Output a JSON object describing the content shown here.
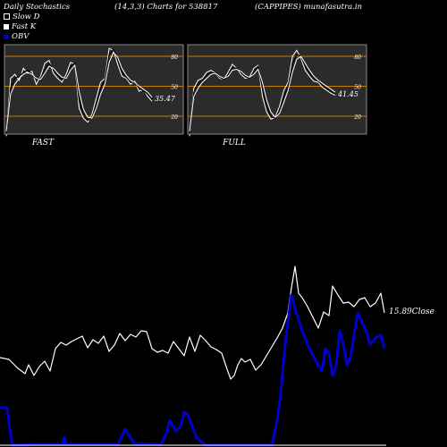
{
  "header": {
    "title": "Daily Stochastics",
    "params": "(14,3,3) Charts for 538817",
    "symbol": "(CAPPIPES) munafasutra.in"
  },
  "legend": [
    {
      "label": "Slow  D",
      "color": "#000000"
    },
    {
      "label": "Fast K",
      "color": "#ffffff"
    },
    {
      "label": "OBV",
      "color": "#0000cc"
    }
  ],
  "colors": {
    "background": "#000000",
    "panel": "#2b2b2b",
    "level_line": "#cc7a00",
    "stoch_line": "#ffffff",
    "obv_line": "#0000cc",
    "price_line": "#ffffff"
  },
  "chart_data": [
    {
      "type": "line",
      "panel": "FAST",
      "ylim": [
        0,
        100
      ],
      "levels": [
        20,
        50,
        80
      ],
      "level_labels": [
        "20",
        "50",
        "80"
      ],
      "last_value_label": "35.47",
      "series": [
        {
          "values": [
            0,
            58,
            62,
            56,
            68,
            63,
            65,
            52,
            60,
            73,
            76,
            63,
            58,
            54,
            62,
            74,
            72,
            28,
            18,
            14,
            22,
            38,
            54,
            58,
            88,
            86,
            72,
            60,
            58,
            52,
            55,
            45,
            47,
            40,
            35
          ]
        },
        {
          "values": [
            2,
            48,
            58,
            60,
            64,
            66,
            62,
            57,
            58,
            67,
            73,
            67,
            61,
            57,
            59,
            70,
            73,
            36,
            22,
            16,
            19,
            32,
            48,
            56,
            82,
            87,
            77,
            64,
            59,
            54,
            54,
            48,
            46,
            42,
            37
          ]
        },
        {
          "values": [
            5,
            42,
            52,
            58,
            62,
            64,
            62,
            58,
            57,
            63,
            70,
            68,
            63,
            59,
            58,
            66,
            71,
            45,
            27,
            19,
            18,
            28,
            42,
            52,
            74,
            84,
            79,
            68,
            61,
            56,
            54,
            50,
            47,
            44,
            39
          ]
        }
      ]
    },
    {
      "type": "line",
      "panel": "FULL",
      "ylim": [
        0,
        100
      ],
      "levels": [
        20,
        50,
        80
      ],
      "level_labels": [
        "20",
        "50",
        "80"
      ],
      "last_value_label": "41.45",
      "series": [
        {
          "values": [
            0,
            48,
            56,
            58,
            64,
            66,
            63,
            58,
            57,
            64,
            72,
            68,
            62,
            58,
            59,
            68,
            71,
            40,
            24,
            17,
            19,
            30,
            46,
            54,
            80,
            86,
            78,
            66,
            60,
            55,
            54,
            49,
            46,
            43,
            41
          ]
        },
        {
          "values": [
            2,
            44,
            52,
            56,
            61,
            64,
            63,
            59,
            57,
            61,
            69,
            68,
            64,
            60,
            58,
            64,
            70,
            48,
            30,
            20,
            18,
            26,
            40,
            50,
            72,
            82,
            80,
            70,
            63,
            58,
            55,
            51,
            48,
            45,
            42
          ]
        },
        {
          "values": [
            5,
            40,
            48,
            54,
            58,
            62,
            63,
            60,
            58,
            60,
            66,
            67,
            65,
            61,
            59,
            62,
            67,
            54,
            36,
            24,
            19,
            23,
            34,
            46,
            64,
            77,
            80,
            73,
            66,
            60,
            56,
            53,
            50,
            47,
            44
          ]
        }
      ]
    },
    {
      "type": "line",
      "panel": "price_obv",
      "close_label": "15.89Close",
      "series": [
        {
          "name": "Close",
          "color": "#ffffff",
          "x": [
            0,
            10,
            20,
            28,
            32,
            38,
            44,
            50,
            56,
            62,
            68,
            74,
            80,
            86,
            92,
            98,
            104,
            110,
            116,
            122,
            128,
            134,
            140,
            146,
            152,
            158,
            164,
            170,
            176,
            182,
            188,
            194,
            200,
            206,
            212,
            218,
            224,
            230,
            236,
            242,
            248,
            254,
            258,
            262,
            266,
            270,
            274,
            280,
            286,
            292,
            298,
            304,
            310,
            316,
            322,
            326,
            330,
            334,
            338,
            344,
            350,
            356,
            362,
            368,
            372,
            378,
            384,
            390,
            396,
            402,
            408,
            414,
            420,
            426,
            430
          ],
          "y": [
            400,
            402,
            412,
            418,
            408,
            420,
            410,
            404,
            415,
            390,
            383,
            386,
            382,
            379,
            376,
            389,
            380,
            384,
            376,
            393,
            386,
            373,
            381,
            374,
            377,
            370,
            371,
            390,
            394,
            392,
            395,
            382,
            390,
            398,
            377,
            393,
            375,
            381,
            388,
            391,
            395,
            413,
            424,
            420,
            408,
            401,
            405,
            402,
            414,
            408,
            398,
            388,
            378,
            367,
            350,
            322,
            298,
            328,
            333,
            343,
            355,
            367,
            349,
            353,
            320,
            330,
            339,
            338,
            343,
            335,
            333,
            343,
            339,
            328,
            350
          ]
        },
        {
          "name": "OBV",
          "color": "#0000cc",
          "x": [
            0,
            8,
            12,
            14,
            22,
            40,
            70,
            72,
            74,
            80,
            132,
            140,
            150,
            180,
            186,
            190,
            196,
            202,
            206,
            210,
            214,
            220,
            230,
            290,
            304,
            310,
            314,
            318,
            322,
            326,
            330,
            338,
            346,
            354,
            360,
            364,
            368,
            372,
            376,
            380,
            384,
            388,
            392,
            396,
            400,
            404,
            410,
            414,
            420,
            426,
            430
          ],
          "y": [
            456,
            456,
            488,
            498,
            498,
            497,
            497,
            489,
            497,
            497,
            497,
            480,
            496,
            497,
            485,
            470,
            482,
            477,
            461,
            464,
            474,
            490,
            498,
            498,
            498,
            470,
            440,
            395,
            360,
            330,
            345,
            370,
            390,
            405,
            415,
            390,
            395,
            420,
            408,
            370,
            385,
            408,
            400,
            375,
            350,
            358,
            372,
            385,
            378,
            375,
            390
          ]
        }
      ]
    }
  ],
  "panel_labels": {
    "fast": "FAST",
    "full": "FULL"
  }
}
